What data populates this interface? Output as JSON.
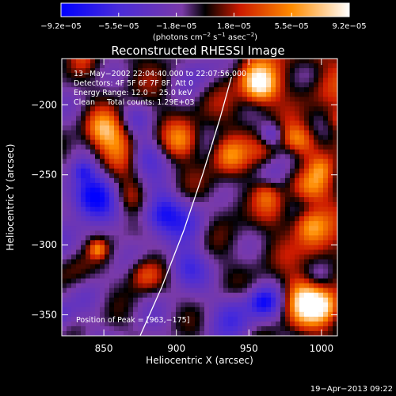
{
  "chart_data": {
    "type": "heatmap",
    "title": "Reconstructed RHESSI Image",
    "xlabel": "Heliocentric X (arcsec)",
    "ylabel": "Heliocentric Y (arcsec)",
    "xlim": [
      821,
      1011
    ],
    "ylim": [
      -365,
      -167
    ],
    "x_ticks": [
      850,
      900,
      950,
      1000
    ],
    "y_ticks": [
      -350,
      -300,
      -250,
      -200
    ],
    "x_tick_labels": [
      "850",
      "900",
      "950",
      "1000"
    ],
    "y_tick_labels": [
      "−350",
      "−300",
      "−250",
      "−200"
    ],
    "colorbar": {
      "min": -9.2e-05,
      "max": 9.2e-05,
      "tick_labels": [
        "−9.2e−05",
        "−5.5e−05",
        "−1.8e−05",
        "1.8e−05",
        "5.5e−05",
        "9.2e−05"
      ],
      "units_text": "(photons cm",
      "units_sup1": "−2",
      "units_mid": " s",
      "units_sup2": "−1",
      "units_mid2": " asec",
      "units_sup3": "−2",
      "units_end": ")",
      "colors": [
        "#0000ff",
        "#4a2cd8",
        "#7a3aa8",
        "#000000",
        "#cc1a00",
        "#ff8c00",
        "#ffffff"
      ]
    },
    "annotations": {
      "line1": "13−May−2002 22:04:40.000 to 22:07:56.000",
      "line2": "Detectors: 4F 5F 6F 7F 8F, Att 0",
      "line3": "Energy Range: 12.0 − 25.0 keV",
      "line4": "Clean     Total counts: 1.29E+03",
      "peak": "Position of Peak = [963,−175]"
    },
    "peak": {
      "x": 963,
      "y": -175
    },
    "limb_curve": [
      [
        875,
        -365
      ],
      [
        890,
        -330
      ],
      [
        905,
        -290
      ],
      [
        918,
        -250
      ],
      [
        930,
        -210
      ],
      [
        938,
        -180
      ]
    ],
    "timestamp": "19−Apr−2013 09:22"
  }
}
